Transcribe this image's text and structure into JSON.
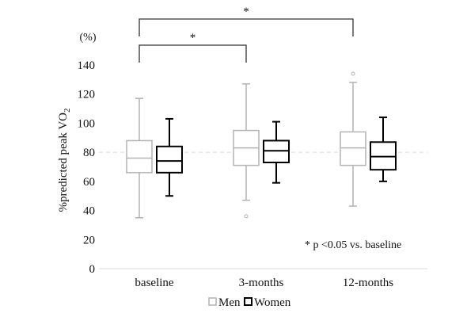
{
  "chart_data": {
    "type": "boxplot",
    "title": "",
    "unit": "(%)",
    "ylabel": "%predicted peak VO",
    "ylabel_sub": "2",
    "ylim": [
      0,
      140
    ],
    "yticks": [
      0,
      20,
      40,
      60,
      80,
      100,
      120,
      140
    ],
    "categories": [
      "baseline",
      "3-months",
      "12-months"
    ],
    "reference_line": 80,
    "colors": {
      "Men": "#b3b3b3",
      "Women": "#000000",
      "reference": "#d9d9d9",
      "bracket": "#333333"
    },
    "series": [
      {
        "name": "Men",
        "boxes": [
          {
            "min": 35,
            "q1": 66,
            "median": 76,
            "q3": 88,
            "max": 117,
            "outliers": []
          },
          {
            "min": 47,
            "q1": 71,
            "median": 83,
            "q3": 95,
            "max": 127,
            "outliers": [
              36
            ]
          },
          {
            "min": 43,
            "q1": 71,
            "median": 83,
            "q3": 94,
            "max": 128,
            "outliers": [
              134
            ]
          }
        ]
      },
      {
        "name": "Women",
        "boxes": [
          {
            "min": 50,
            "q1": 66,
            "median": 74,
            "q3": 84,
            "max": 103,
            "outliers": []
          },
          {
            "min": 59,
            "q1": 73,
            "median": 81,
            "q3": 88,
            "max": 101,
            "outliers": []
          },
          {
            "min": 60,
            "q1": 68,
            "median": 77,
            "q3": 87,
            "max": 104,
            "outliers": []
          }
        ]
      }
    ],
    "significance": [
      {
        "from": "baseline",
        "to": "3-months",
        "label": "*"
      },
      {
        "from": "baseline",
        "to": "12-months",
        "label": "*"
      }
    ],
    "annotation": "* p <0.05 vs. baseline",
    "legend": {
      "position": "bottom",
      "entries": [
        "Men",
        "Women"
      ]
    }
  }
}
